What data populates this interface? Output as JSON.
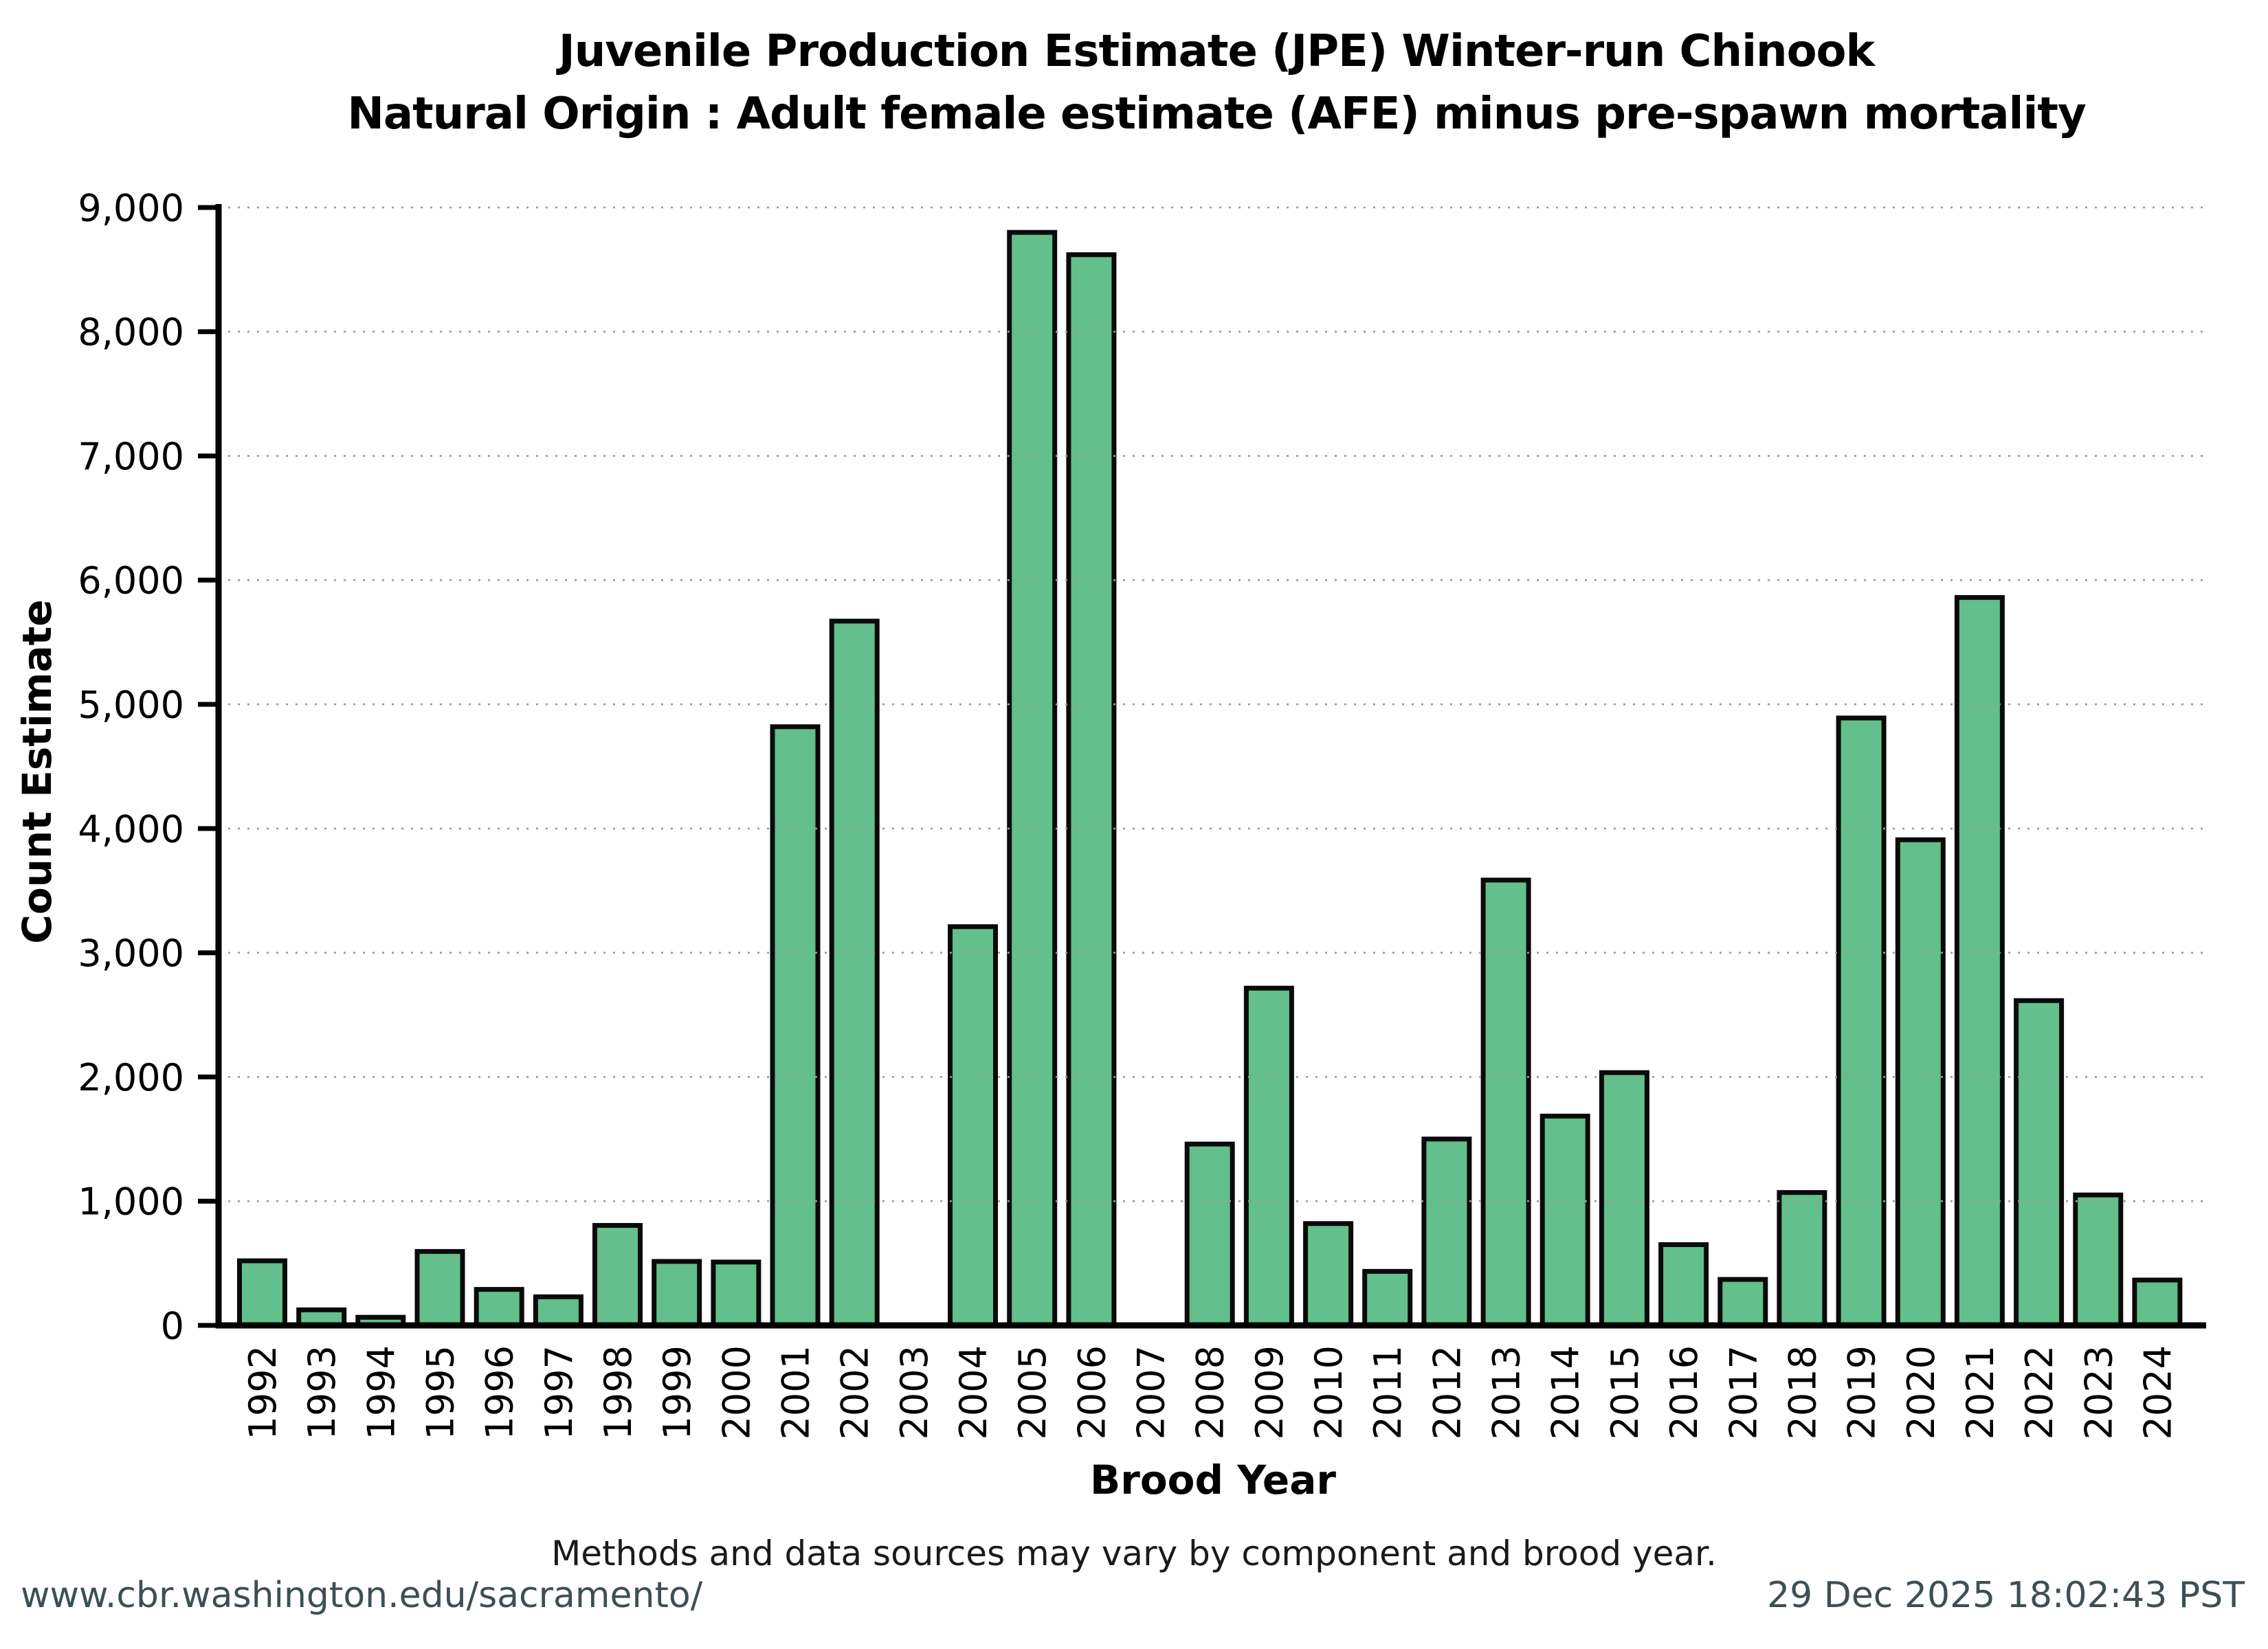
{
  "title": {
    "line1": "Juvenile Production Estimate (JPE) Winter-run Chinook",
    "line2": "Natural Origin : Adult female estimate (AFE) minus pre-spawn mortality"
  },
  "axes": {
    "ylabel": "Count Estimate",
    "xlabel": "Brood Year"
  },
  "footer": {
    "note": "Methods and data sources may vary by component and brood year.",
    "url": "www.cbr.washington.edu/sacramento/",
    "timestamp": "29 Dec 2025 18:02:43 PST"
  },
  "chart_data": {
    "type": "bar",
    "title": "Juvenile Production Estimate (JPE) Winter-run Chinook — Natural Origin : Adult female estimate (AFE) minus pre-spawn mortality",
    "xlabel": "Brood Year",
    "ylabel": "Count Estimate",
    "categories": [
      1992,
      1993,
      1994,
      1995,
      1996,
      1997,
      1998,
      1999,
      2000,
      2001,
      2002,
      2003,
      2004,
      2005,
      2006,
      2007,
      2008,
      2009,
      2010,
      2011,
      2012,
      2013,
      2014,
      2015,
      2016,
      2017,
      2018,
      2019,
      2020,
      2021,
      2022,
      2023,
      2024
    ],
    "values": [
      520,
      125,
      65,
      595,
      290,
      230,
      805,
      515,
      510,
      4820,
      5670,
      0,
      3210,
      8800,
      8620,
      0,
      1460,
      2715,
      820,
      435,
      1500,
      3585,
      1685,
      2035,
      650,
      370,
      1070,
      4890,
      3910,
      5860,
      2615,
      1050,
      365
    ],
    "ylim": [
      0,
      9000
    ],
    "ytick_step": 1000,
    "ytick_labels": [
      "0",
      "1,000",
      "2,000",
      "3,000",
      "4,000",
      "5,000",
      "6,000",
      "7,000",
      "8,000",
      "9,000"
    ],
    "grid": "dotted horizontal lines at each 1,000, drawn over bars",
    "legend": "none",
    "bar_color": "#63bf8b",
    "bar_edge_color": "#0a0a0a",
    "grid_color": "#999999",
    "axis_color": "#000000",
    "footer_text_color": "#3d4f54"
  }
}
